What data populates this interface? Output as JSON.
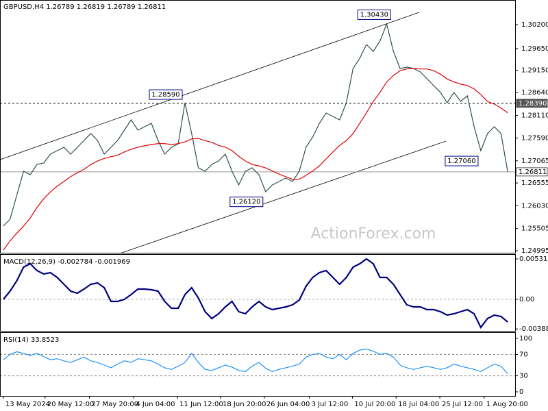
{
  "chart_data": [
    {
      "type": "line",
      "title": "GBPUSD,H4 1.26789 1.26819 1.26789 1.26811",
      "watermark": "ActionForex.com",
      "xlim": [
        -0.5,
        76.1
      ],
      "ylim": [
        1.24932,
        1.30768
      ],
      "yticks": [
        {
          "value": 1.302,
          "label": "1.30200"
        },
        {
          "value": 1.2965,
          "label": "1.29650"
        },
        {
          "value": 1.2915,
          "label": "1.29150"
        },
        {
          "value": 1.2864,
          "label": "1.28640"
        },
        {
          "value": 1.2811,
          "label": "1.28110"
        },
        {
          "value": 1.2759,
          "label": "1.27590"
        },
        {
          "value": 1.27065,
          "label": "1.27065"
        },
        {
          "value": 1.26555,
          "label": "1.26555"
        },
        {
          "value": 1.2603,
          "label": "1.26030"
        },
        {
          "value": 1.25505,
          "label": "1.25505"
        },
        {
          "value": 1.24995,
          "label": "1.24995"
        }
      ],
      "series": [
        {
          "color": "#2f4f4f",
          "values": [
            1.25563,
            1.25721,
            1.26273,
            1.26825,
            1.26746,
            1.26982,
            1.27014,
            1.27219,
            1.27298,
            1.27377,
            1.27219,
            1.27377,
            1.27534,
            1.27692,
            1.27534,
            1.27219,
            1.27377,
            1.27534,
            1.27771,
            1.28008,
            1.27771,
            1.2785,
            1.27929,
            1.27534,
            1.27219,
            1.27377,
            1.27456,
            1.28402,
            1.27692,
            1.26903,
            1.26825,
            1.26982,
            1.27061,
            1.27219,
            1.26825,
            1.26509,
            1.26825,
            1.26903,
            1.26746,
            1.26351,
            1.26509,
            1.26588,
            1.26667,
            1.26588,
            1.26825,
            1.27377,
            1.27613,
            1.27929,
            1.28165,
            1.28086,
            1.28008,
            1.28402,
            1.29191,
            1.29427,
            1.29743,
            1.29585,
            1.29821,
            1.30216,
            1.29585,
            1.29191,
            1.29222,
            1.29191,
            1.29112,
            1.28954,
            1.28796,
            1.28638,
            1.28402,
            1.28638,
            1.28433,
            1.2856,
            1.2785,
            1.27298,
            1.27692,
            1.2785,
            1.27692,
            1.26811
          ]
        },
        {
          "color": "#e00000",
          "values": [
            1.2501,
            1.2522,
            1.254,
            1.2556,
            1.2575,
            1.2599,
            1.2619,
            1.2635,
            1.2648,
            1.2659,
            1.267,
            1.2679,
            1.2687,
            1.2698,
            1.2706,
            1.2712,
            1.2716,
            1.2719,
            1.2727,
            1.2733,
            1.2738,
            1.2741,
            1.2744,
            1.2746,
            1.2746,
            1.2744,
            1.2746,
            1.275,
            1.2757,
            1.2758,
            1.2753,
            1.2749,
            1.2742,
            1.2738,
            1.273,
            1.2717,
            1.2706,
            1.2698,
            1.2695,
            1.269,
            1.2683,
            1.2676,
            1.267,
            1.2664,
            1.2664,
            1.2673,
            1.2683,
            1.2695,
            1.2711,
            1.2727,
            1.2742,
            1.2753,
            1.2769,
            1.2793,
            1.2817,
            1.2843,
            1.2864,
            1.2888,
            1.2903,
            1.2914,
            1.2918,
            1.2919,
            1.2918,
            1.2918,
            1.2914,
            1.2906,
            1.2895,
            1.2888,
            1.2883,
            1.288,
            1.2872,
            1.2859,
            1.2843,
            1.2837,
            1.2828,
            1.2817
          ]
        }
      ],
      "annotations": [
        {
          "value": 1.3043,
          "label": "1.30430",
          "x": 58
        },
        {
          "value": 1.2859,
          "label": "1.28590",
          "x": 27
        },
        {
          "value": 1.2612,
          "label": "1.26120",
          "x": 39
        },
        {
          "value": 1.2706,
          "label": "1.27060",
          "x": 71
        }
      ],
      "hlines": [
        {
          "value": 1.2839,
          "label": "1.28390",
          "style": "dashed"
        },
        {
          "value": 1.26811,
          "label": "1.26811",
          "style": "solid"
        }
      ]
    },
    {
      "type": "line",
      "title": "MACD(12,26,9) -0.002784 -0.001969",
      "xlim": [
        -0.5,
        76.1
      ],
      "ylim": [
        -0.00423,
        0.00585
      ],
      "yticks": [
        0.005314,
        {
          "value": 0,
          "label": "0.00"
        },
        -0.003885
      ],
      "series": [
        {
          "color": "#000080",
          "width": 2.2,
          "values": [
            0,
            0.00108,
            0.00243,
            0.00423,
            0.00468,
            0.00378,
            0.00333,
            0.00351,
            0.00288,
            0.00198,
            0.00108,
            0.00081,
            0.00135,
            0.00198,
            0.00216,
            0.00153,
            -0.00027,
            -0.00027,
            0,
            0.00063,
            0.00135,
            0.00135,
            0.00126,
            0.00108,
            -0.00027,
            -0.00117,
            -0.00117,
            0.00063,
            0.00153,
            0.00018,
            -0.00162,
            -0.00252,
            -0.00189,
            -0.00099,
            -0.00027,
            -0.00162,
            -0.00189,
            -0.00099,
            -0.00027,
            -0.00099,
            -0.00135,
            -0.00117,
            -0.00099,
            -0.00072,
            -9e-05,
            0.00171,
            0.00288,
            0.00351,
            0.00378,
            0.00288,
            0.00198,
            0.00288,
            0.00423,
            0.00468,
            0.00531,
            0.00468,
            0.00288,
            0.00288,
            0.00198,
            0.00063,
            -0.00072,
            -0.00099,
            -0.00099,
            -0.00135,
            -0.00135,
            -0.00162,
            -0.00207,
            -0.00189,
            -0.00162,
            -0.00135,
            -0.00189,
            -0.00369,
            -0.00252,
            -0.00207,
            -0.00225,
            -0.00297
          ]
        }
      ]
    },
    {
      "type": "line",
      "title": "RSI(14) 33.8523",
      "xlim": [
        -0.5,
        76.1
      ],
      "ylim": [
        -7.7,
        110.3
      ],
      "yticks": [
        100,
        70,
        30,
        0
      ],
      "dashed_levels": [
        70,
        30
      ],
      "series": [
        {
          "color": "#1e90ff",
          "values": [
            60,
            70,
            75,
            72,
            68,
            72,
            66,
            60,
            62,
            58,
            55,
            60,
            65,
            58,
            55,
            50,
            45,
            52,
            58,
            55,
            62,
            60,
            58,
            52,
            45,
            42,
            48,
            55,
            72,
            55,
            42,
            40,
            45,
            50,
            46,
            40,
            38,
            48,
            55,
            44,
            38,
            42,
            45,
            48,
            52,
            65,
            70,
            72,
            65,
            62,
            70,
            60,
            72,
            78,
            80,
            76,
            70,
            72,
            65,
            50,
            45,
            42,
            45,
            48,
            45,
            42,
            45,
            52,
            48,
            45,
            42,
            38,
            45,
            52,
            48,
            33.85
          ]
        }
      ],
      "xticks": [
        {
          "value": 0,
          "label": "13 May 2024"
        },
        {
          "value": 6.2,
          "label": "20 May 12:00"
        },
        {
          "value": 12.8,
          "label": "27 May 20:00"
        },
        {
          "value": 19.4,
          "label": "4 Jun 04:00"
        },
        {
          "value": 25.9,
          "label": "11 Jun 12:00"
        },
        {
          "value": 32.3,
          "label": "18 Jun 20:00"
        },
        {
          "value": 38.8,
          "label": "26 Jun 04:00"
        },
        {
          "value": 45.5,
          "label": "3 Jul 12:00"
        },
        {
          "value": 51.9,
          "label": "10 Jul 20:00"
        },
        {
          "value": 58.4,
          "label": "18 Jul 04:00"
        },
        {
          "value": 64.9,
          "label": "25 Jul 12:00"
        },
        {
          "value": 71.5,
          "label": "1 Aug 20:00"
        }
      ]
    }
  ]
}
